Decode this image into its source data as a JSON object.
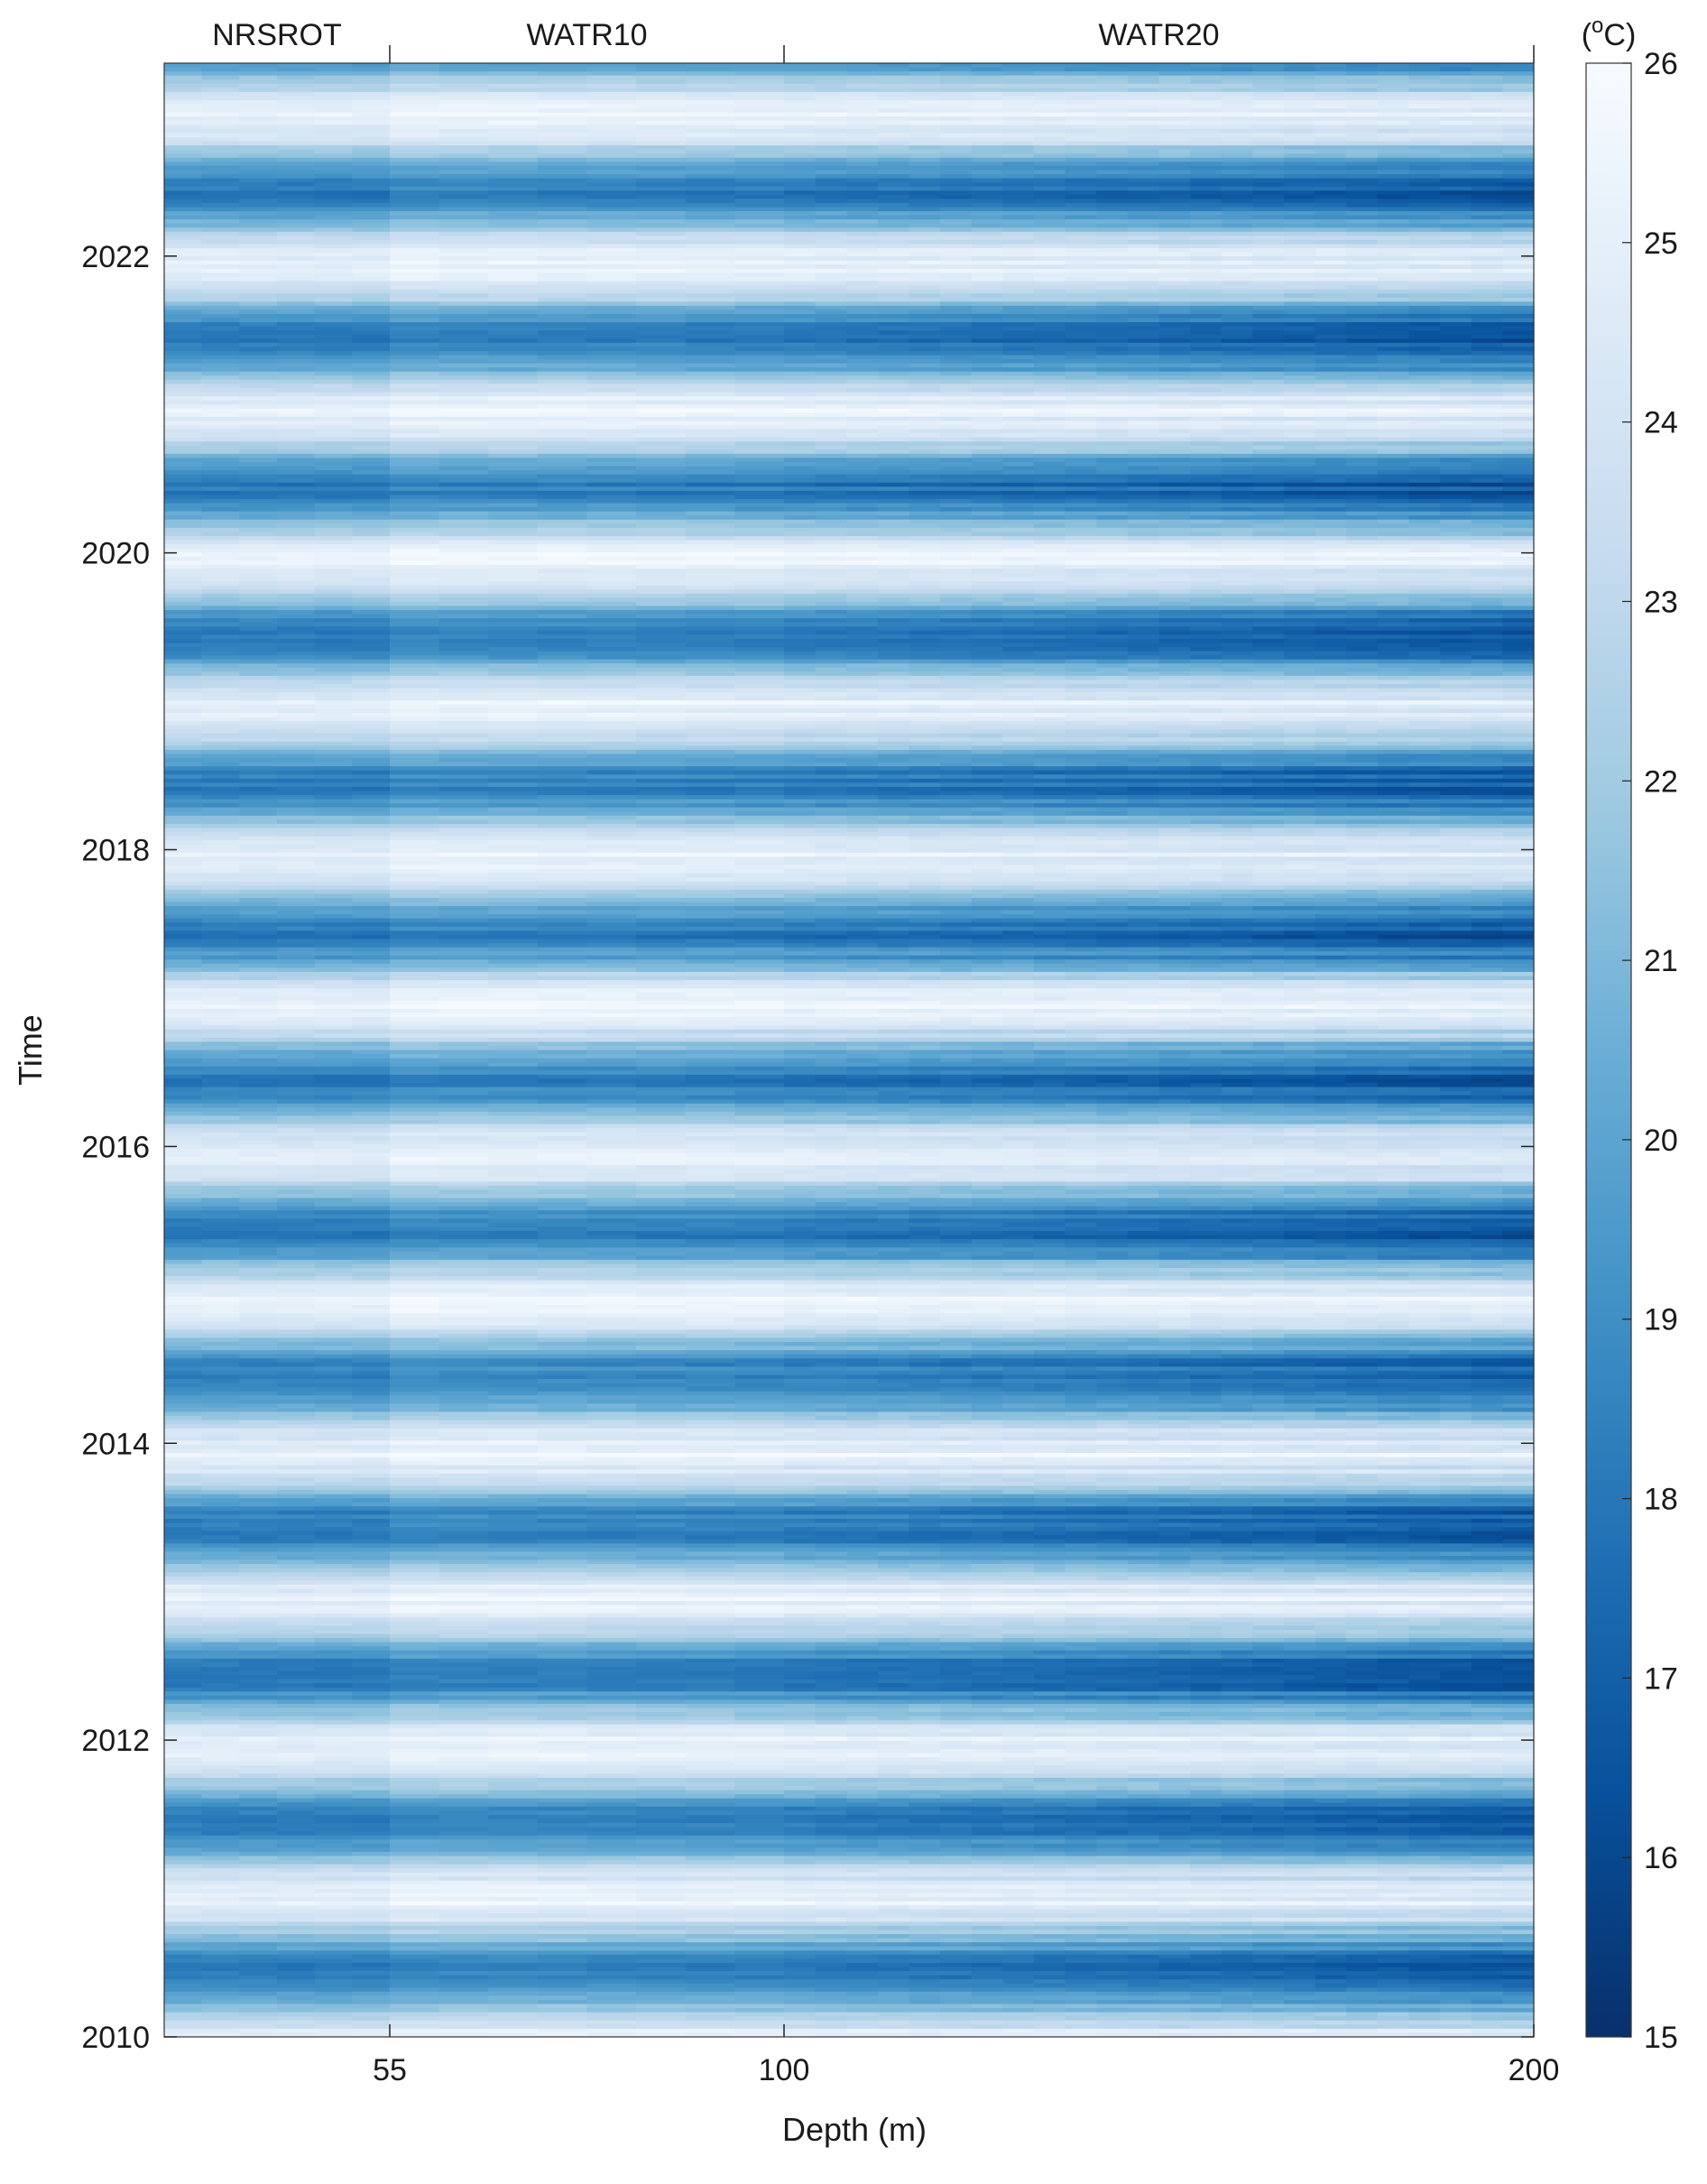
{
  "chart_data": {
    "type": "heatmap",
    "title": "",
    "xlabel": "Depth (m)",
    "ylabel": "Time",
    "x_tick_labels": [
      "55",
      "100",
      "200"
    ],
    "x_ticks": [
      55,
      100,
      200
    ],
    "y_tick_labels": [
      "2010",
      "2012",
      "2014",
      "2016",
      "2018",
      "2020",
      "2022"
    ],
    "y_ticks": [
      2010,
      2012,
      2014,
      2016,
      2018,
      2020,
      2022
    ],
    "ylim": [
      2010,
      2023.3
    ],
    "sections": [
      {
        "name": "NRSROT",
        "depth_range": [
          35,
          55
        ]
      },
      {
        "name": "WATR10",
        "depth_range": [
          55,
          100
        ]
      },
      {
        "name": "WATR20",
        "depth_range": [
          100,
          200
        ]
      }
    ],
    "colorbar": {
      "label": "(°C)",
      "tick_labels": [
        "15",
        "16",
        "17",
        "18",
        "19",
        "20",
        "21",
        "22",
        "23",
        "24",
        "25",
        "26"
      ],
      "range": [
        15,
        26
      ],
      "colormap": [
        "#08306b",
        "#08519c",
        "#2171b5",
        "#4292c6",
        "#6baed6",
        "#9ecae1",
        "#c6dbef",
        "#deebf7",
        "#f7fbff"
      ]
    },
    "seasonal_pattern": {
      "description_values_degC": {
        "summer_surface_max": 25.5,
        "winter_surface_min": 18.5,
        "winter_200m_min": 16
      }
    }
  }
}
